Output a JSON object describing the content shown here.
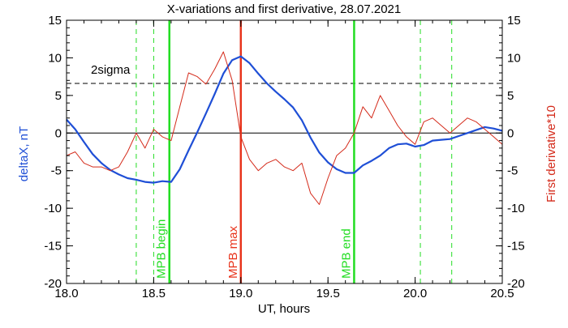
{
  "chart_data": {
    "type": "line",
    "title": "X-variations and first derivative, 28.07.2021",
    "xlabel": "UT, hours",
    "ylabel_left": "deltaX, nT",
    "ylabel_right": "First derivative*10",
    "xlim": [
      18.0,
      20.5
    ],
    "ylim": [
      -20,
      15
    ],
    "x_ticks": [
      "18.0",
      "18.5",
      "19.0",
      "19.5",
      "20.0",
      "20.5"
    ],
    "y_ticks": [
      "15",
      "10",
      "5",
      "0",
      "-5",
      "-10",
      "-15",
      "-20"
    ],
    "grid": false,
    "colors": {
      "deltaX": "#1f4fd6",
      "derivative": "#d42a1a",
      "mpb": "#22dd22",
      "mpb_max": "#e8341c",
      "reference": "#000000"
    },
    "sigma_label": "2sigma",
    "sigma_level": 6.6,
    "zero_level": 0,
    "vertical_markers": [
      {
        "label": "MPB begin",
        "x": 18.59,
        "style": "solid",
        "color": "#22dd22"
      },
      {
        "label": "MPB max",
        "x": 19.0,
        "style": "solid",
        "color": "#e8341c"
      },
      {
        "label": "MPB end",
        "x": 19.65,
        "style": "solid",
        "color": "#22dd22"
      }
    ],
    "dashed_markers": [
      18.4,
      18.5,
      20.03,
      20.21
    ],
    "series": [
      {
        "name": "deltaX",
        "axis": "left",
        "x": [
          18.0,
          18.05,
          18.1,
          18.15,
          18.2,
          18.25,
          18.3,
          18.35,
          18.4,
          18.45,
          18.5,
          18.55,
          18.6,
          18.65,
          18.7,
          18.75,
          18.8,
          18.85,
          18.9,
          18.95,
          19.0,
          19.05,
          19.1,
          19.15,
          19.2,
          19.25,
          19.3,
          19.35,
          19.4,
          19.45,
          19.5,
          19.55,
          19.6,
          19.65,
          19.7,
          19.75,
          19.8,
          19.85,
          19.9,
          19.95,
          20.0,
          20.05,
          20.1,
          20.15,
          20.2,
          20.25,
          20.3,
          20.35,
          20.4,
          20.45,
          20.5
        ],
        "y": [
          1.8,
          0.5,
          -1.2,
          -2.8,
          -4.0,
          -4.9,
          -5.5,
          -6.0,
          -6.2,
          -6.5,
          -6.6,
          -6.4,
          -6.5,
          -4.8,
          -2.3,
          0.1,
          2.6,
          5.2,
          7.9,
          9.7,
          10.2,
          9.3,
          7.9,
          6.6,
          5.5,
          4.5,
          3.4,
          1.7,
          -0.6,
          -2.6,
          -3.9,
          -4.8,
          -5.3,
          -5.3,
          -4.3,
          -3.7,
          -3.0,
          -2.0,
          -1.5,
          -1.4,
          -1.8,
          -1.6,
          -1.0,
          -0.9,
          -0.8,
          -0.4,
          0.0,
          0.4,
          0.8,
          0.6,
          0.3
        ]
      },
      {
        "name": "First derivative*10",
        "axis": "right",
        "x": [
          18.0,
          18.05,
          18.1,
          18.15,
          18.2,
          18.25,
          18.3,
          18.35,
          18.4,
          18.45,
          18.5,
          18.55,
          18.6,
          18.65,
          18.7,
          18.75,
          18.8,
          18.85,
          18.9,
          18.95,
          19.0,
          19.05,
          19.1,
          19.15,
          19.2,
          19.25,
          19.3,
          19.35,
          19.4,
          19.45,
          19.5,
          19.55,
          19.6,
          19.65,
          19.7,
          19.75,
          19.8,
          19.85,
          19.9,
          19.95,
          20.0,
          20.05,
          20.1,
          20.15,
          20.2,
          20.25,
          20.3,
          20.35,
          20.4,
          20.45,
          20.5
        ],
        "y": [
          -3.0,
          -2.5,
          -4.0,
          -4.5,
          -4.5,
          -5.0,
          -4.5,
          -2.5,
          0.0,
          -2.0,
          0.5,
          -0.5,
          -1.0,
          3.5,
          8.0,
          7.5,
          6.5,
          8.5,
          10.8,
          7.0,
          -0.5,
          -3.5,
          -5.0,
          -4.0,
          -3.5,
          -4.5,
          -5.0,
          -4.0,
          -8.0,
          -9.5,
          -6.0,
          -3.0,
          -2.0,
          0.0,
          3.5,
          2.0,
          5.0,
          3.0,
          1.0,
          -0.5,
          -1.5,
          1.5,
          2.0,
          1.0,
          0.0,
          1.0,
          2.0,
          1.5,
          0.5,
          -0.5,
          -1.5
        ]
      }
    ]
  }
}
